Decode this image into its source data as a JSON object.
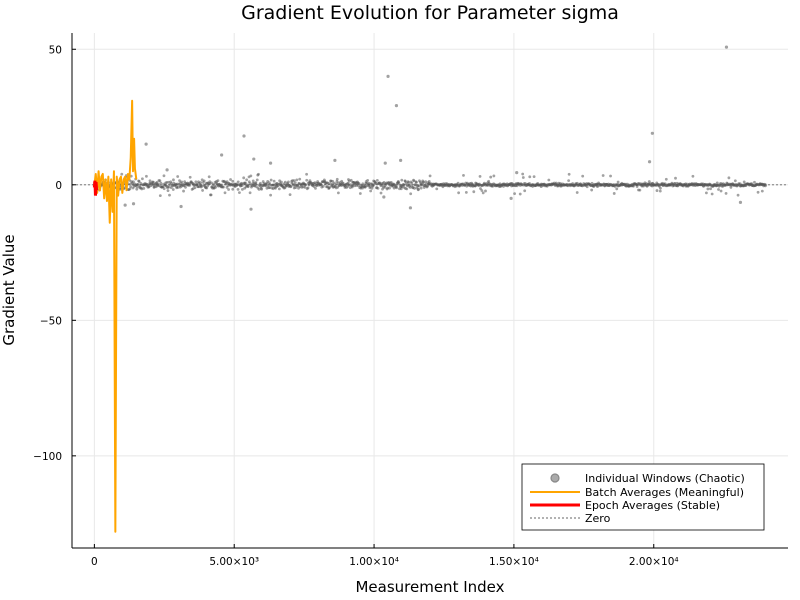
{
  "chart_data": {
    "type": "line",
    "title": "Gradient Evolution for Parameter sigma",
    "xlabel": "Measurement Index",
    "ylabel": "Gradient Value",
    "xlim": [
      -800,
      24800
    ],
    "ylim": [
      -134,
      56
    ],
    "grid": true,
    "legend_position": "bottom-right",
    "x_ticks": [
      {
        "value": 0,
        "label": "0"
      },
      {
        "value": 5000,
        "label": "5.00×10³"
      },
      {
        "value": 10000,
        "label": "1.00×10⁴"
      },
      {
        "value": 15000,
        "label": "1.50×10⁴"
      },
      {
        "value": 20000,
        "label": "2.00×10⁴"
      }
    ],
    "y_ticks": [
      {
        "value": 50,
        "label": "50"
      },
      {
        "value": 0,
        "label": "0"
      },
      {
        "value": -50,
        "label": "−50"
      },
      {
        "value": -100,
        "label": "−100"
      }
    ],
    "series": [
      {
        "name": "Individual Windows (Chaotic)",
        "kind": "scatter",
        "color": "#555555",
        "x_range": [
          0,
          24000
        ],
        "outliers": [
          {
            "x": 22600,
            "y": 50.8
          },
          {
            "x": 10500,
            "y": 40.0
          },
          {
            "x": 10800,
            "y": 29.2
          },
          {
            "x": 19950,
            "y": 19.0
          },
          {
            "x": 5350,
            "y": 18.0
          },
          {
            "x": 1850,
            "y": 15.0
          },
          {
            "x": 4550,
            "y": 11.0
          },
          {
            "x": 2600,
            "y": 5.5
          },
          {
            "x": 5700,
            "y": 9.5
          },
          {
            "x": 10400,
            "y": 8.0
          },
          {
            "x": 19850,
            "y": 8.5
          },
          {
            "x": 10950,
            "y": 9.0
          },
          {
            "x": 8600,
            "y": 9.0
          },
          {
            "x": 6300,
            "y": 8.0
          },
          {
            "x": 15100,
            "y": 4.5
          },
          {
            "x": 5600,
            "y": -9.0
          },
          {
            "x": 11300,
            "y": -8.5
          },
          {
            "x": 3100,
            "y": -8.0
          },
          {
            "x": 10350,
            "y": -4.5
          },
          {
            "x": 14900,
            "y": -5.0
          },
          {
            "x": 23100,
            "y": -6.5
          },
          {
            "x": 1100,
            "y": -7.5
          },
          {
            "x": 1400,
            "y": -7.0
          }
        ]
      },
      {
        "name": "Batch Averages (Meaningful)",
        "kind": "line",
        "color": "#FFA500",
        "x": [
          0,
          50,
          100,
          150,
          200,
          250,
          300,
          350,
          400,
          450,
          500,
          550,
          600,
          650,
          700,
          750,
          800,
          850,
          900,
          950,
          1000,
          1050,
          1100,
          1150,
          1200,
          1250,
          1300,
          1350,
          1380,
          1420,
          1450,
          1500
        ],
        "values": [
          0,
          4,
          -3,
          5,
          -2,
          3,
          4,
          -5,
          2,
          -6,
          3,
          -14,
          2,
          -10,
          5,
          -128,
          3,
          -4,
          2,
          3,
          -3,
          2,
          3,
          -2,
          4,
          2,
          10,
          31,
          5,
          17,
          6,
          2
        ]
      },
      {
        "name": "Epoch Averages (Stable)",
        "kind": "line",
        "color": "#FF0000",
        "x": [
          0,
          20,
          40,
          60,
          80
        ],
        "values": [
          -1,
          1.5,
          -4,
          1,
          -2
        ]
      },
      {
        "name": "Zero",
        "kind": "hline",
        "color": "#666666",
        "value": 0
      }
    ]
  }
}
